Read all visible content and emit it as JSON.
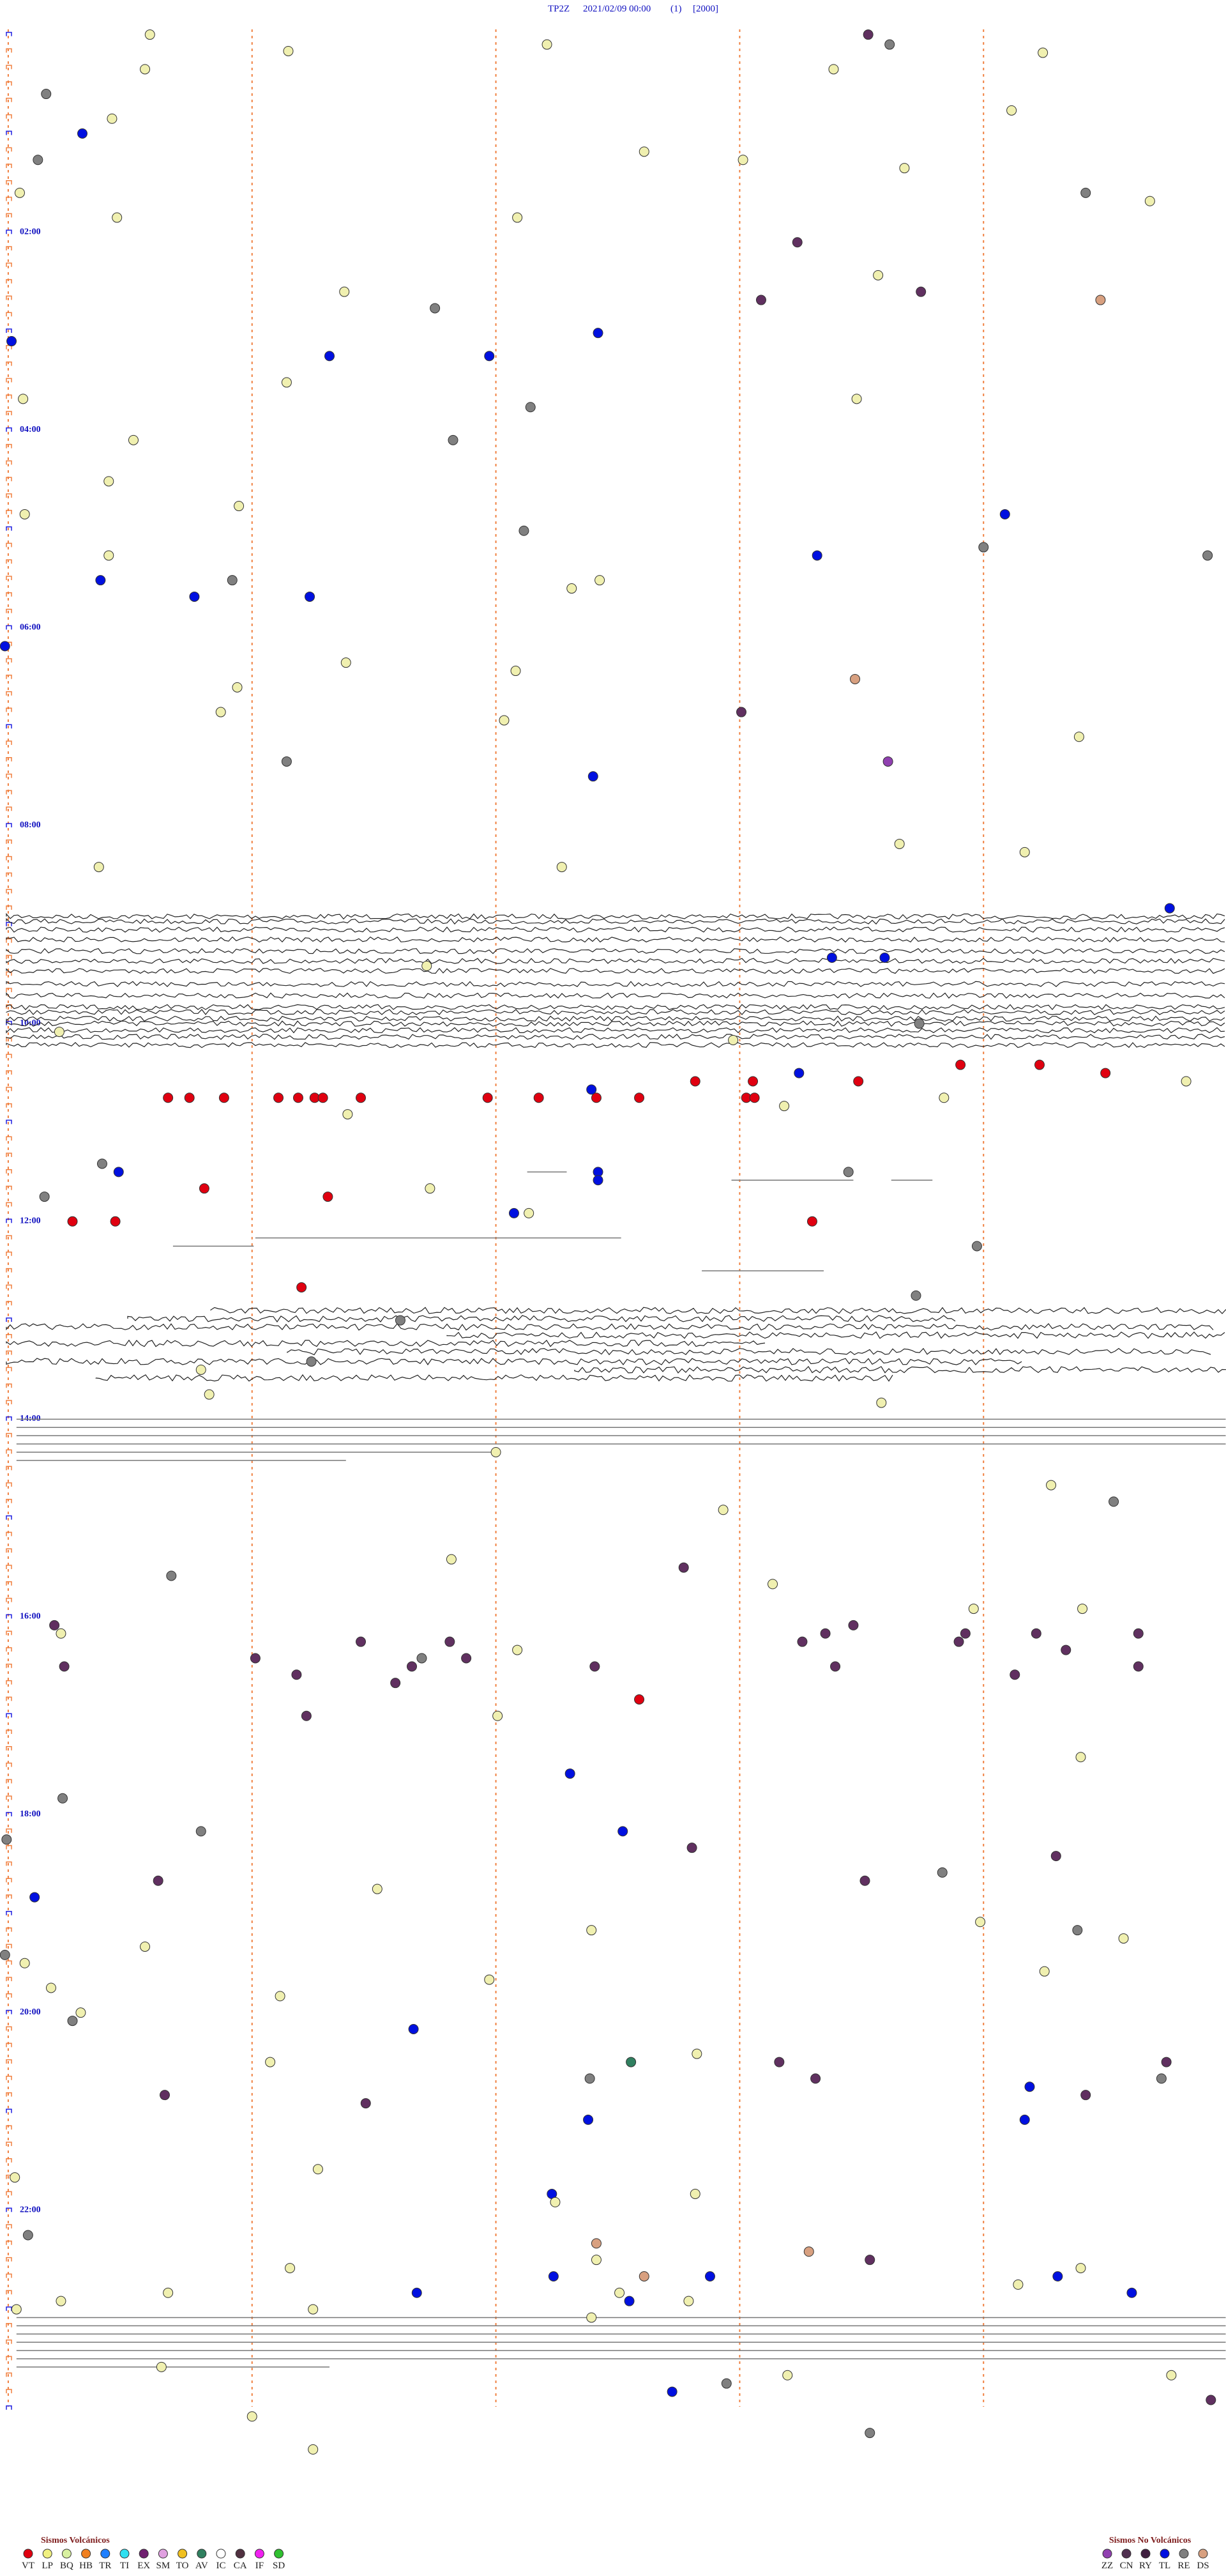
{
  "header": {
    "station": "TP2Z",
    "datetime": "2021/02/09 00:00",
    "channel": "(1)",
    "scale": "[2000]"
  },
  "time_labels": [
    "02:00",
    "04:00",
    "06:00",
    "08:00",
    "10:00",
    "12:00",
    "14:00",
    "16:00",
    "18:00",
    "20:00",
    "22:00"
  ],
  "legend": {
    "volcanic": {
      "title": "Sismos Volcánicos",
      "codes": [
        "VT",
        "LP",
        "BQ",
        "HB",
        "TR",
        "TI",
        "EX",
        "SM",
        "TO",
        "AV",
        "IC",
        "CA",
        "IF",
        "SD"
      ]
    },
    "non_volcanic": {
      "title": "Sismos No Volcánicos",
      "codes": [
        "ZZ",
        "CN",
        "RY",
        "TL",
        "RE",
        "DS"
      ]
    }
  }
}
